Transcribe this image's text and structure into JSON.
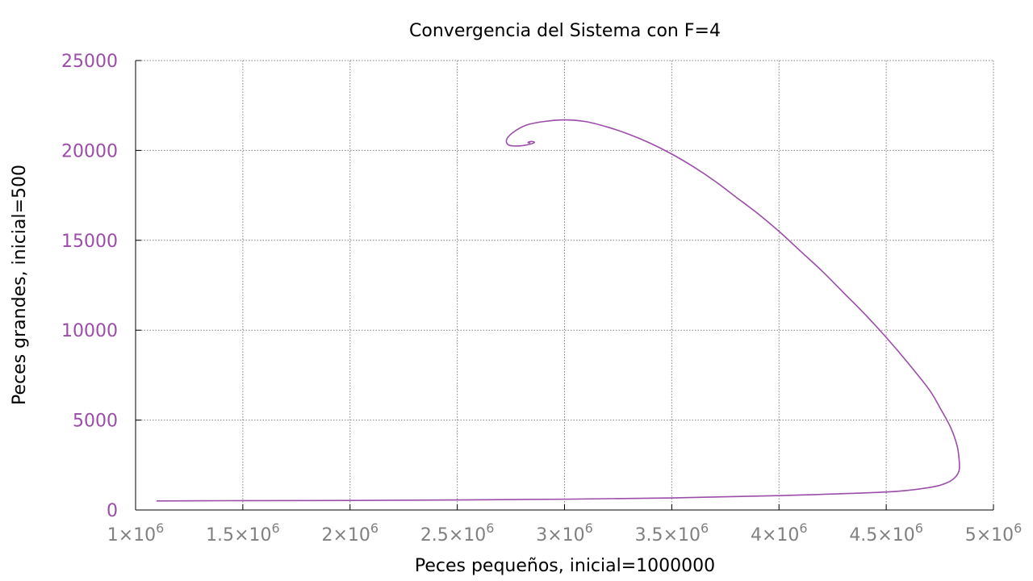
{
  "chart_data": {
    "type": "line",
    "title": "Convergencia del Sistema con F=4",
    "xlabel": "Peces pequeños, inicial=1000000",
    "ylabel": "Peces grandes, inicial=500",
    "xlim": [
      1000000,
      5000000
    ],
    "ylim": [
      0,
      25000
    ],
    "grid": true,
    "x_ticks": [
      {
        "value": 1000000,
        "mantissa": "1",
        "exponent": "6"
      },
      {
        "value": 1500000,
        "mantissa": "1.5",
        "exponent": "6"
      },
      {
        "value": 2000000,
        "mantissa": "2",
        "exponent": "6"
      },
      {
        "value": 2500000,
        "mantissa": "2.5",
        "exponent": "6"
      },
      {
        "value": 3000000,
        "mantissa": "3",
        "exponent": "6"
      },
      {
        "value": 3500000,
        "mantissa": "3.5",
        "exponent": "6"
      },
      {
        "value": 4000000,
        "mantissa": "4",
        "exponent": "6"
      },
      {
        "value": 4500000,
        "mantissa": "4.5",
        "exponent": "6"
      },
      {
        "value": 5000000,
        "mantissa": "5",
        "exponent": "6"
      }
    ],
    "y_ticks": [
      {
        "value": 0,
        "label": "0"
      },
      {
        "value": 5000,
        "label": "5000"
      },
      {
        "value": 10000,
        "label": "10000"
      },
      {
        "value": 15000,
        "label": "15000"
      },
      {
        "value": 20000,
        "label": "20000"
      },
      {
        "value": 25000,
        "label": "25000"
      }
    ],
    "series": [
      {
        "color": "#9b4da8",
        "x": [
          1100000,
          1500000,
          2000000,
          2500000,
          3000000,
          3500000,
          4000000,
          4500000,
          4700000,
          4780000,
          4820000,
          4840000,
          4840000,
          4830000,
          4800000,
          4750000,
          4700000,
          4600000,
          4500000,
          4400000,
          4300000,
          4200000,
          4100000,
          4000000,
          3900000,
          3800000,
          3700000,
          3600000,
          3500000,
          3400000,
          3300000,
          3200000,
          3100000,
          3000000,
          2900000,
          2820000,
          2760000,
          2730000,
          2740000,
          2790000,
          2840000,
          2860000,
          2845000,
          2830000,
          2838000
        ],
        "y": [
          500,
          520,
          530,
          560,
          600,
          670,
          800,
          1000,
          1250,
          1500,
          1800,
          2200,
          2800,
          3600,
          4600,
          5700,
          6700,
          8200,
          9600,
          10900,
          12100,
          13300,
          14400,
          15500,
          16500,
          17400,
          18300,
          19100,
          19800,
          20400,
          20900,
          21300,
          21600,
          21700,
          21600,
          21400,
          21000,
          20600,
          20300,
          20250,
          20350,
          20450,
          20500,
          20450,
          20420
        ]
      }
    ]
  },
  "colors": {
    "series": "#9b4da8",
    "ytick_text": "#9b4da8",
    "xtick_text": "#808080",
    "grid": "#808080",
    "axis": "#000000"
  }
}
